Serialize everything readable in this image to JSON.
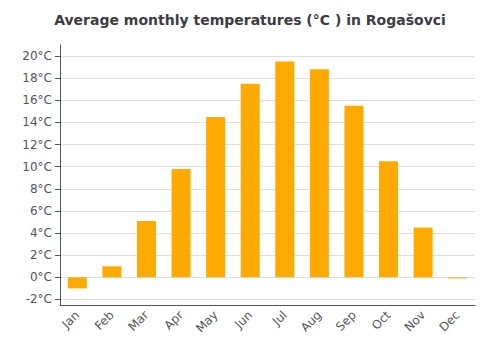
{
  "chart_data": {
    "type": "bar",
    "title": "Average monthly temperatures (°C ) in Rogašovci",
    "categories": [
      "Jan",
      "Feb",
      "Mar",
      "Apr",
      "May",
      "Jun",
      "Jul",
      "Aug",
      "Sep",
      "Oct",
      "Nov",
      "Dec"
    ],
    "values": [
      -1.0,
      1.0,
      5.1,
      9.8,
      14.5,
      17.5,
      19.5,
      18.8,
      15.5,
      10.5,
      4.5,
      -0.1
    ],
    "color": "#FFAA00",
    "ylim": [
      -2.5,
      21.0
    ],
    "yticks": [
      {
        "value": -2,
        "label": "-2°C"
      },
      {
        "value": 0,
        "label": "0°C"
      },
      {
        "value": 2,
        "label": "2°C"
      },
      {
        "value": 4,
        "label": "4°C"
      },
      {
        "value": 6,
        "label": "6°C"
      },
      {
        "value": 8,
        "label": "8°C"
      },
      {
        "value": 10,
        "label": "10°C"
      },
      {
        "value": 12,
        "label": "12°C"
      },
      {
        "value": 14,
        "label": "14°C"
      },
      {
        "value": 16,
        "label": "16°C"
      },
      {
        "value": 18,
        "label": "18°C"
      },
      {
        "value": 20,
        "label": "20°C"
      }
    ],
    "grid": true
  }
}
